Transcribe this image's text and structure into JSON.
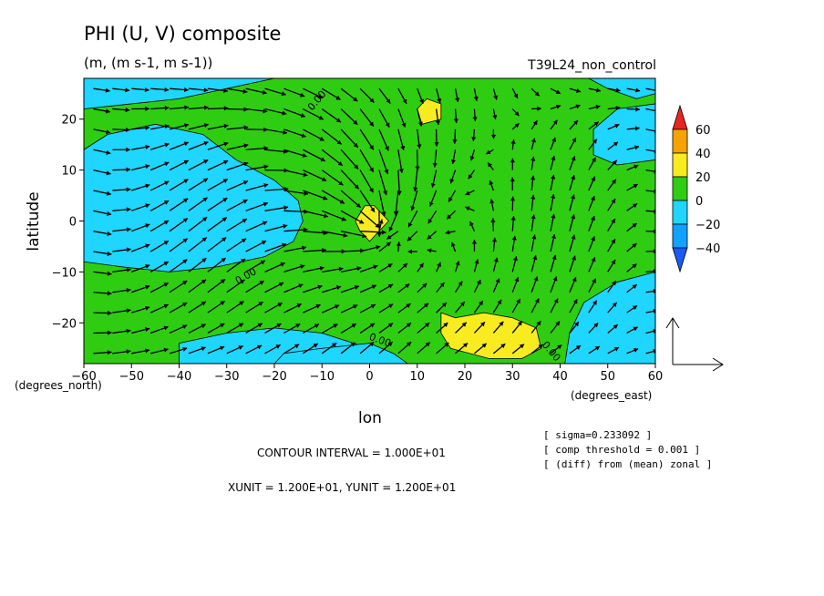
{
  "title": "PHI (U, V) composite",
  "units": "(m, (m s-1, m s-1))",
  "run_label": "T39L24_non_control",
  "chart_data": {
    "type": "heatmap",
    "subtype": "filled contour with vector overlay",
    "xlabel": "lon",
    "ylabel": "latitude",
    "x_units": "(degrees_east)",
    "y_units": "(degrees_north)",
    "xlim": [
      -60,
      60
    ],
    "ylim": [
      -28,
      28
    ],
    "x_ticks": [
      -60,
      -50,
      -40,
      -30,
      -20,
      -10,
      0,
      10,
      20,
      30,
      40,
      50,
      60
    ],
    "y_ticks": [
      -20,
      -10,
      0,
      10,
      20
    ],
    "contour_labels": [
      "0.00",
      "0.00",
      "0.00",
      "0.00"
    ],
    "colorbar": {
      "levels": [
        60,
        40,
        20,
        0,
        -20,
        -40
      ],
      "bands": [
        {
          "range": "> 60",
          "color": "#e8251f"
        },
        {
          "range": "40 to 60",
          "color": "#f5a300"
        },
        {
          "range": "20 to 40",
          "color": "#f8ec21"
        },
        {
          "range": "0 to 20",
          "color": "#2fcd12"
        },
        {
          "range": "-20 to 0",
          "color": "#1ed6ff"
        },
        {
          "range": "-40 to -20",
          "color": "#11a2ff"
        },
        {
          "range": "< -40",
          "color": "#1a5cf0"
        }
      ]
    },
    "regions": {
      "negative": [
        [
          [
            -60,
            22
          ],
          [
            -50,
            23
          ],
          [
            -40,
            24
          ],
          [
            -30,
            26
          ],
          [
            -20,
            28
          ],
          [
            -60,
            28
          ]
        ],
        [
          [
            -60,
            14
          ],
          [
            -55,
            17
          ],
          [
            -45,
            19
          ],
          [
            -35,
            17
          ],
          [
            -28,
            12
          ],
          [
            -20,
            8
          ],
          [
            -15,
            4
          ],
          [
            -14,
            0
          ],
          [
            -16,
            -4
          ],
          [
            -22,
            -7
          ],
          [
            -32,
            -9
          ],
          [
            -42,
            -10
          ],
          [
            -52,
            -9
          ],
          [
            -60,
            -8
          ]
        ],
        [
          [
            -40,
            -24
          ],
          [
            -30,
            -22
          ],
          [
            -20,
            -21
          ],
          [
            -10,
            -22
          ],
          [
            0,
            -25
          ],
          [
            5,
            -28
          ],
          [
            -40,
            -28
          ]
        ],
        [
          [
            -20,
            -28
          ],
          [
            -18,
            -26
          ],
          [
            -10,
            -25
          ],
          [
            0,
            -24
          ],
          [
            5,
            -26
          ],
          [
            8,
            -28
          ]
        ],
        [
          [
            46,
            28
          ],
          [
            50,
            26
          ],
          [
            56,
            24
          ],
          [
            60,
            25
          ],
          [
            60,
            28
          ]
        ],
        [
          [
            60,
            23
          ],
          [
            52,
            22
          ],
          [
            47,
            18
          ],
          [
            47,
            13
          ],
          [
            52,
            11
          ],
          [
            60,
            12
          ]
        ],
        [
          [
            60,
            -10
          ],
          [
            52,
            -12
          ],
          [
            45,
            -16
          ],
          [
            42,
            -22
          ],
          [
            41,
            -28
          ],
          [
            60,
            -28
          ]
        ]
      ],
      "positive": [
        [
          [
            10,
            22
          ],
          [
            12,
            24
          ],
          [
            15,
            23
          ],
          [
            15,
            20
          ],
          [
            11,
            19
          ]
        ],
        [
          [
            -3,
            0
          ],
          [
            -1,
            3
          ],
          [
            1,
            3
          ],
          [
            4,
            0
          ],
          [
            0,
            -4
          ],
          [
            -2,
            -2
          ]
        ],
        [
          [
            15,
            -18
          ],
          [
            18,
            -19
          ],
          [
            24,
            -18
          ],
          [
            30,
            -19
          ],
          [
            35,
            -21
          ],
          [
            36,
            -25
          ],
          [
            32,
            -27
          ],
          [
            25,
            -27
          ],
          [
            17,
            -25
          ],
          [
            15,
            -22
          ]
        ]
      ]
    },
    "vector_field": {
      "reference_arrow": "XUNIT = 1.200E+01, YUNIT = 1.200E+01",
      "convergence_center": [
        1,
        0
      ],
      "grid_spacing_deg": [
        4,
        4
      ]
    },
    "notes": [
      "[ sigma=0.233092 ]",
      "[ comp threshold = 0.001 ]",
      "[ (diff) from (mean) zonal ]"
    ],
    "contour_interval_text": "CONTOUR INTERVAL = 1.000E+01",
    "vector_units_text": "XUNIT = 1.200E+01, YUNIT = 1.200E+01"
  }
}
